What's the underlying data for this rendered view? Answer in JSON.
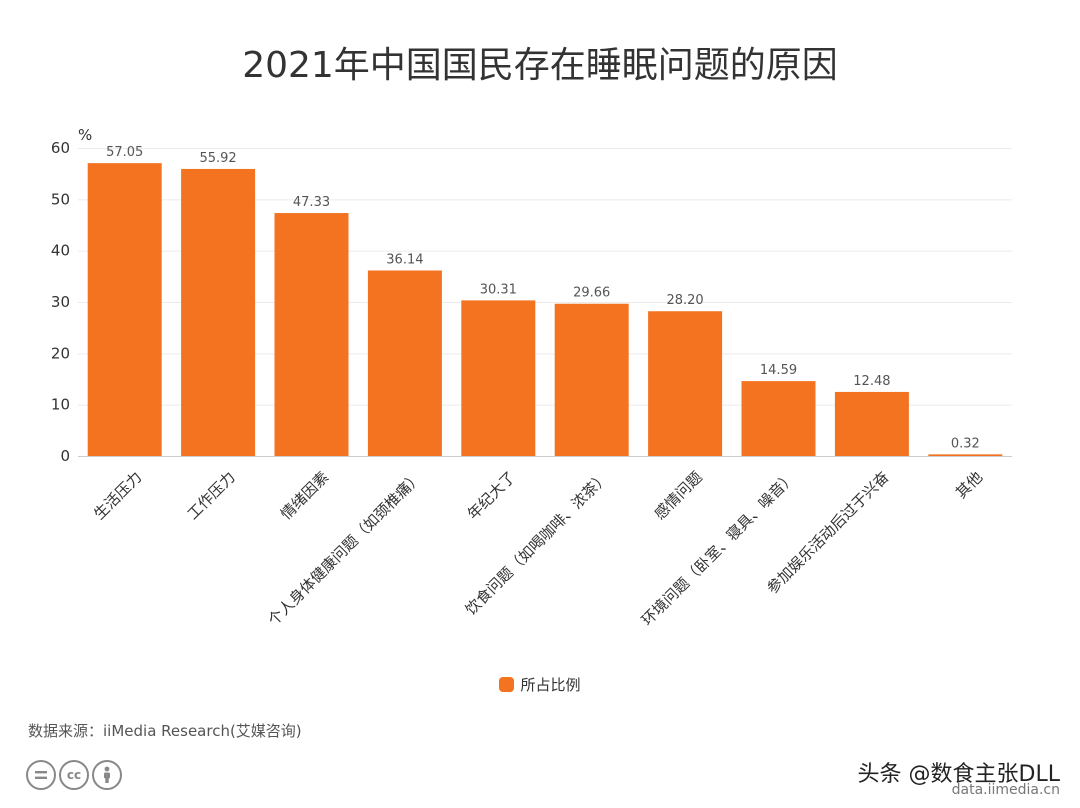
{
  "chart_data": {
    "type": "bar",
    "title": "2021年中国国民存在睡眠问题的原因",
    "ylabel": "%",
    "ylim": [
      0,
      60
    ],
    "yticks": [
      0,
      10,
      20,
      30,
      40,
      50,
      60
    ],
    "categories": [
      "生活压力",
      "工作压力",
      "情绪因素",
      "个人身体健康问题（如颈椎痛）",
      "年纪大了",
      "饮食问题（如喝咖啡、浓茶）",
      "感情问题",
      "环境问题（卧室、寝具、噪音）",
      "参加娱乐活动后过于兴奋",
      "其他"
    ],
    "series": [
      {
        "name": "所占比例",
        "values": [
          57.05,
          55.92,
          47.33,
          36.14,
          30.31,
          29.66,
          28.2,
          14.59,
          12.48,
          0.32
        ],
        "labels": [
          "57.05",
          "55.92",
          "47.33",
          "36.14",
          "30.31",
          "29.66",
          "28.20",
          "14.59",
          "12.48",
          "0.32"
        ],
        "color": "#f47321"
      }
    ],
    "grid": true,
    "legend_position": "bottom"
  },
  "footer": {
    "source": "数据来源：iiMedia Research(艾媒咨询)",
    "license_icons": [
      "cc-equal-icon",
      "cc-icon",
      "cc-by-person-icon"
    ],
    "watermark": "头条 @数食主张DLL",
    "watermark_sub": "data.iimedia.cn"
  },
  "colors": {
    "bar": "#f47321",
    "grid": "#ebebeb",
    "axis": "#cccccc"
  }
}
